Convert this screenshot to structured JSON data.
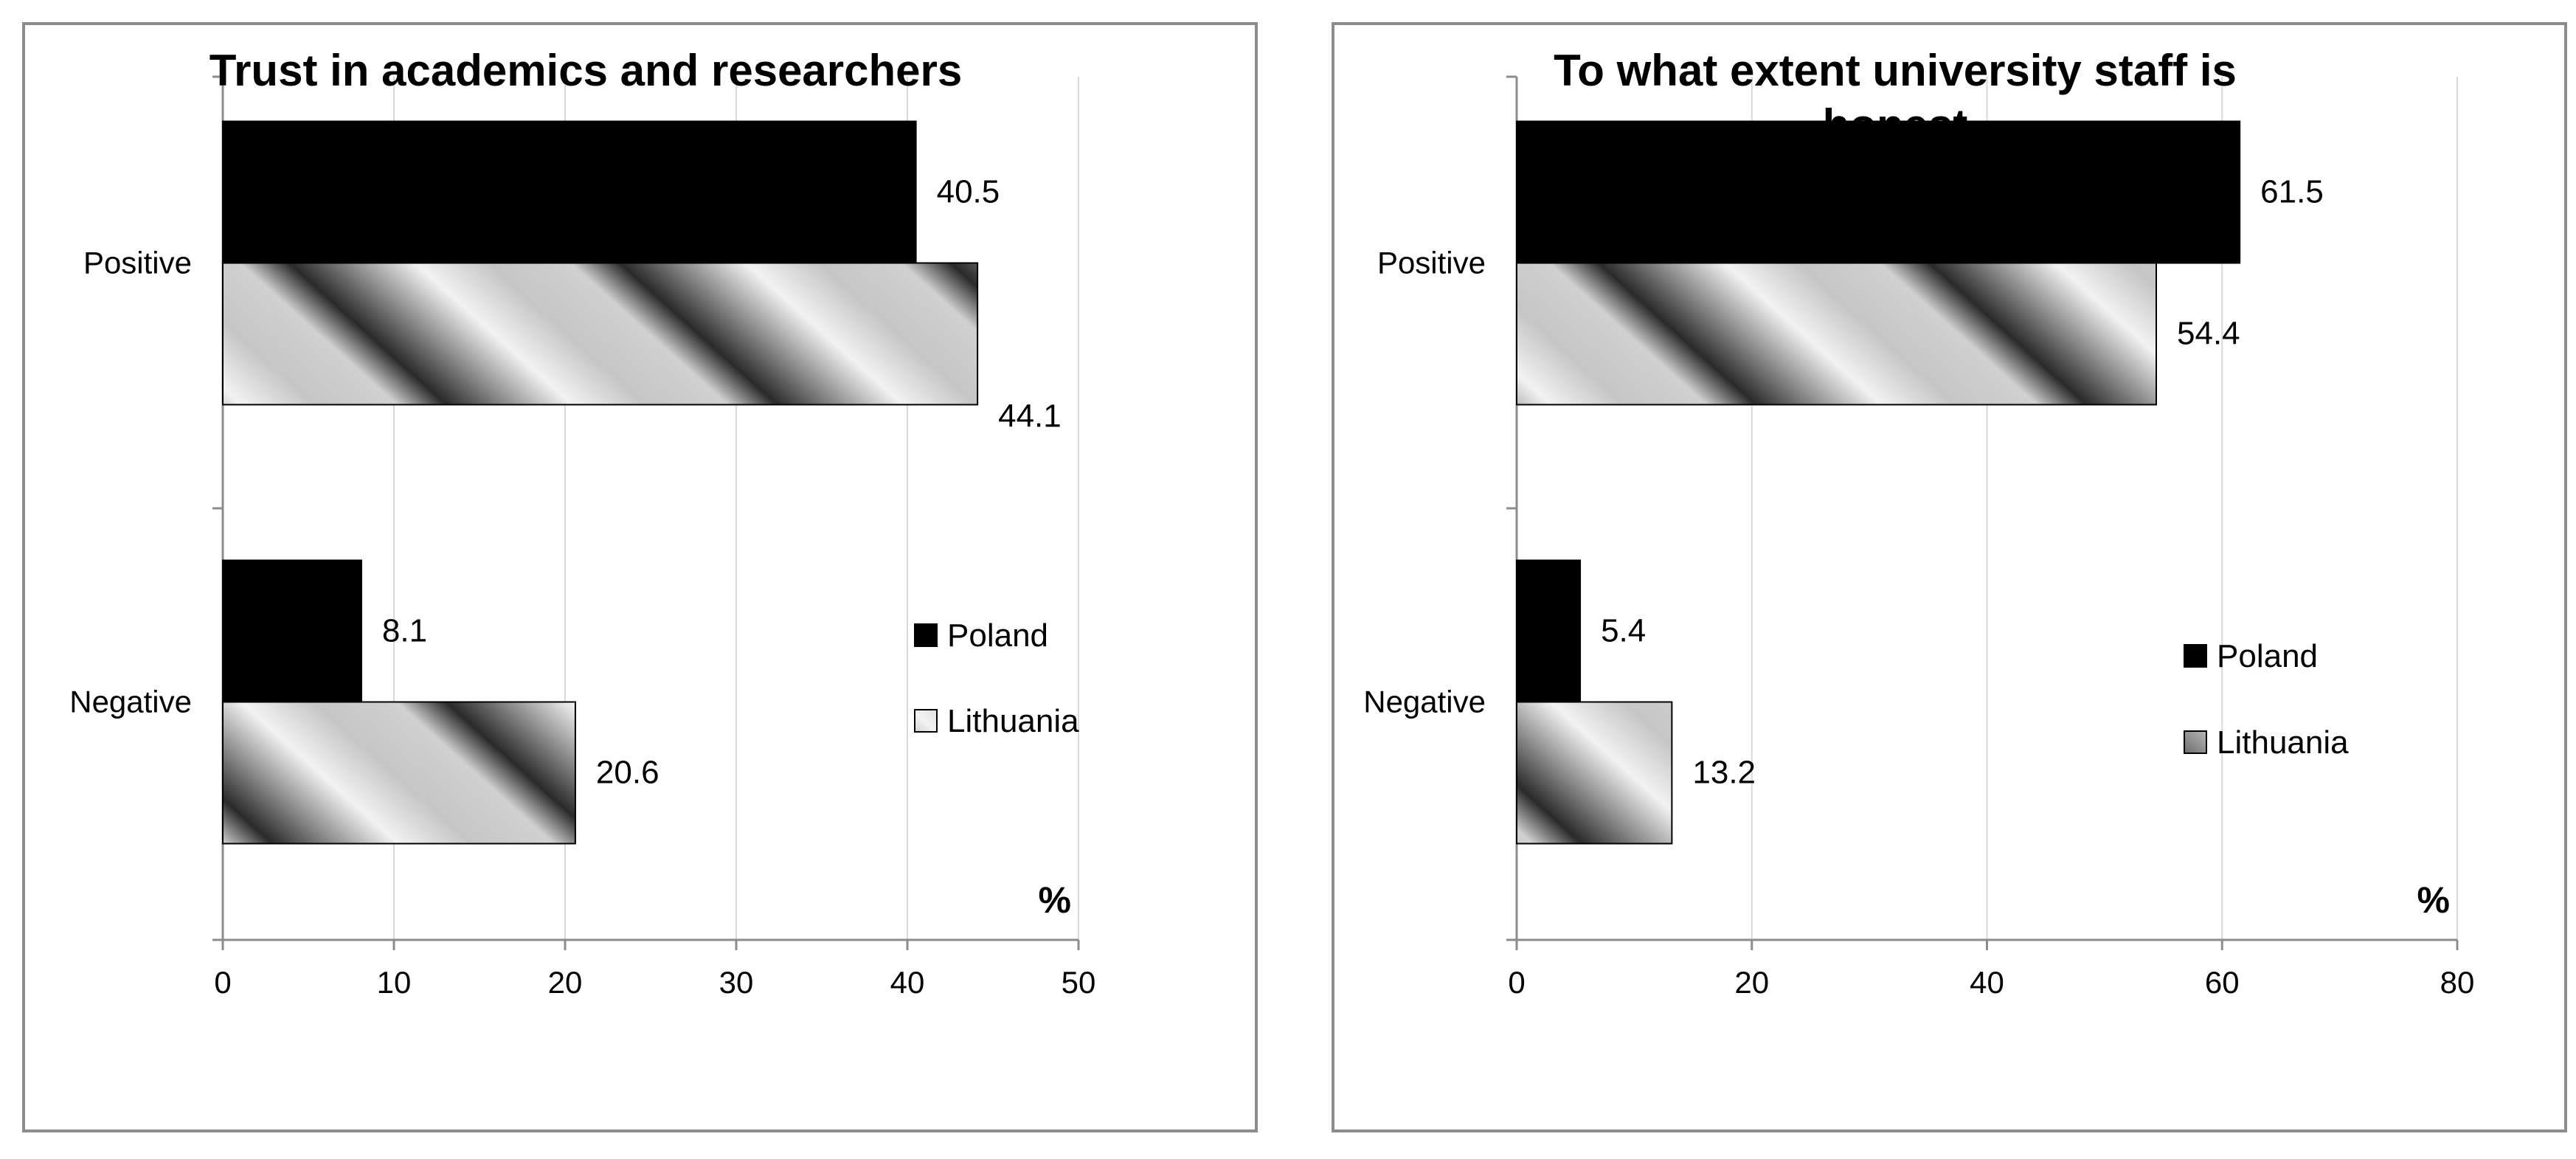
{
  "chart_data": [
    {
      "type": "bar",
      "orientation": "horizontal",
      "title": [
        "Trust in academics and researchers"
      ],
      "categories": [
        "Positive",
        "Negative"
      ],
      "series": [
        {
          "name": "Poland",
          "values": [
            40.5,
            8.1
          ],
          "color": "#000000"
        },
        {
          "name": "Lithuania",
          "values": [
            44.1,
            20.6
          ],
          "color": "#bfbfbf",
          "pattern": "diagonal-gradient"
        }
      ],
      "xlim": [
        0,
        50
      ],
      "xticks": [
        0,
        10,
        20,
        30,
        40,
        50
      ],
      "xunit": "%",
      "grid": true,
      "legend_position": "right"
    },
    {
      "type": "bar",
      "orientation": "horizontal",
      "title": [
        "To what extent university staff is",
        "honest"
      ],
      "categories": [
        "Positive",
        "Negative"
      ],
      "series": [
        {
          "name": "Poland",
          "values": [
            61.5,
            5.4
          ],
          "color": "#000000"
        },
        {
          "name": "Lithuania",
          "values": [
            54.4,
            13.2
          ],
          "color": "#bfbfbf",
          "pattern": "diagonal-gradient"
        }
      ],
      "xlim": [
        0,
        80
      ],
      "xticks": [
        0,
        20,
        40,
        60,
        80
      ],
      "xunit": "%",
      "grid": true,
      "legend_position": "right"
    }
  ]
}
